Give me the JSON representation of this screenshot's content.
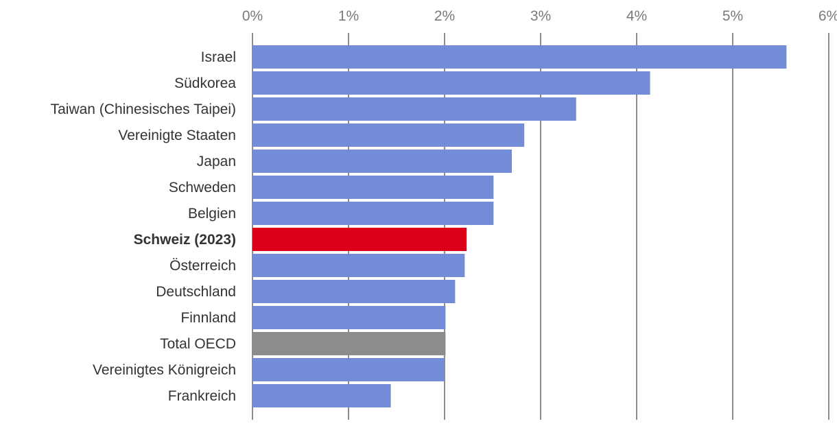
{
  "chart_data": {
    "type": "bar",
    "orientation": "horizontal",
    "categories": [
      "Israel",
      "Südkorea",
      "Taiwan (Chinesisches Taipei)",
      "Vereinigte Staaten",
      "Japan",
      "Schweden",
      "Belgien",
      "Schweiz (2023)",
      "Österreich",
      "Deutschland",
      "Finnland",
      "Total OECD",
      "Vereinigtes Königreich",
      "Frankreich"
    ],
    "values": [
      5.56,
      4.14,
      3.37,
      2.83,
      2.7,
      2.51,
      2.51,
      2.23,
      2.21,
      2.11,
      2.01,
      2.01,
      2.0,
      1.44
    ],
    "bar_colors": [
      "#728cd8",
      "#728cd8",
      "#728cd8",
      "#728cd8",
      "#728cd8",
      "#728cd8",
      "#728cd8",
      "#dc0018",
      "#728cd8",
      "#728cd8",
      "#728cd8",
      "#8c8c8c",
      "#728cd8",
      "#728cd8"
    ],
    "highlight": "Schweiz (2023)",
    "xlim": [
      0,
      6
    ],
    "ticks": [
      0,
      1,
      2,
      3,
      4,
      5,
      6
    ],
    "tick_labels": [
      "0%",
      "1%",
      "2%",
      "3%",
      "4%",
      "5%",
      "6%"
    ],
    "axis_position": "top",
    "grid": true,
    "title": "",
    "xlabel": "",
    "ylabel": ""
  },
  "colors": {
    "default_bar": "#728cd8",
    "highlight_bar": "#dc0018",
    "total_bar": "#8c8c8c",
    "gridline": "#8c8c8c"
  }
}
